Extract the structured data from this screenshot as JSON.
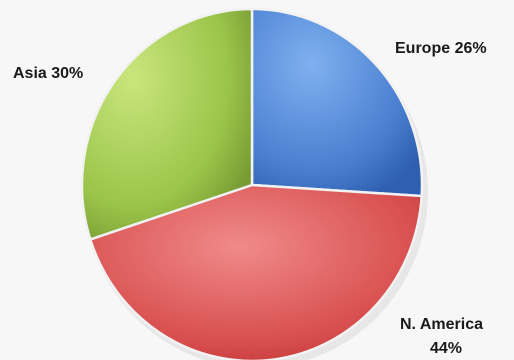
{
  "chart_data": {
    "type": "pie",
    "title": "",
    "slices": [
      {
        "label": "Europe",
        "value": 26,
        "display": "Europe 26%",
        "color": "#4a7fd0"
      },
      {
        "label": "N. America",
        "value": 44,
        "display_lines": [
          "N. America",
          "44%"
        ],
        "color": "#d84d4d"
      },
      {
        "label": "Asia",
        "value": 30,
        "display": "Asia 30%",
        "color": "#9bc44a"
      }
    ]
  }
}
